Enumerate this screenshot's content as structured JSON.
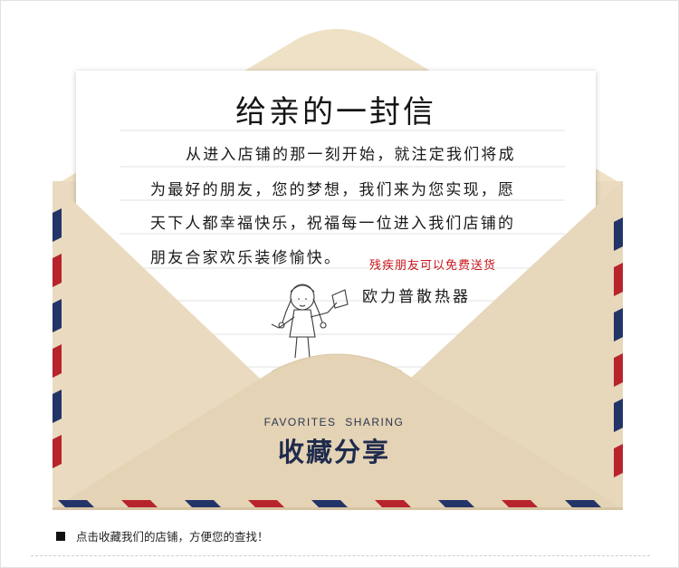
{
  "letter": {
    "title": "给亲的一封信",
    "lines": [
      "从进入店铺的那一刻开始，就注定我们将成",
      "为最好的朋友，您的梦想，我们来为您实现，愿",
      "天下人都幸福快乐，祝福每一位进入我们店铺的",
      "朋友合家欢乐装修愉快。"
    ],
    "red_note": "残疾朋友可以免费送货",
    "signature": "欧力普散热器"
  },
  "envelope": {
    "heading_en": "FAVORITES  SHARING",
    "heading_cn": "收藏分享",
    "stripe_colors": [
      "#b8242c",
      "#233468"
    ],
    "paper_color": "#eadcc3"
  },
  "footer": {
    "note": "点击收藏我们的店铺，方便您的查找！"
  }
}
